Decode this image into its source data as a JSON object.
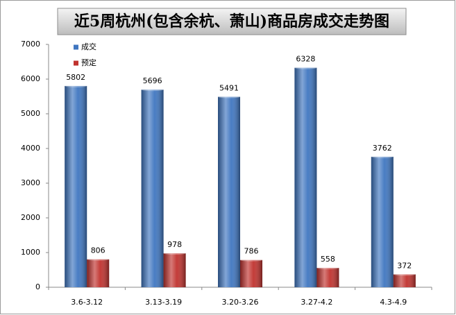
{
  "chart_data": {
    "type": "bar",
    "title": "近5周杭州(包含余杭、萧山)商品房成交走势图",
    "categories": [
      "3.6-3.12",
      "3.13-3.19",
      "3.20-3.26",
      "3.27-4.2",
      "4.3-4.9"
    ],
    "series": [
      {
        "name": "成交",
        "color": "#3f76c0",
        "values": [
          5802,
          5696,
          5491,
          6328,
          3762
        ]
      },
      {
        "name": "预定",
        "color": "#c0322e",
        "values": [
          806,
          978,
          786,
          558,
          372
        ]
      }
    ],
    "ylim": [
      0,
      7000
    ],
    "yticks": [
      0,
      1000,
      2000,
      3000,
      4000,
      5000,
      6000,
      7000
    ],
    "grid": false,
    "legend": "top-left"
  }
}
